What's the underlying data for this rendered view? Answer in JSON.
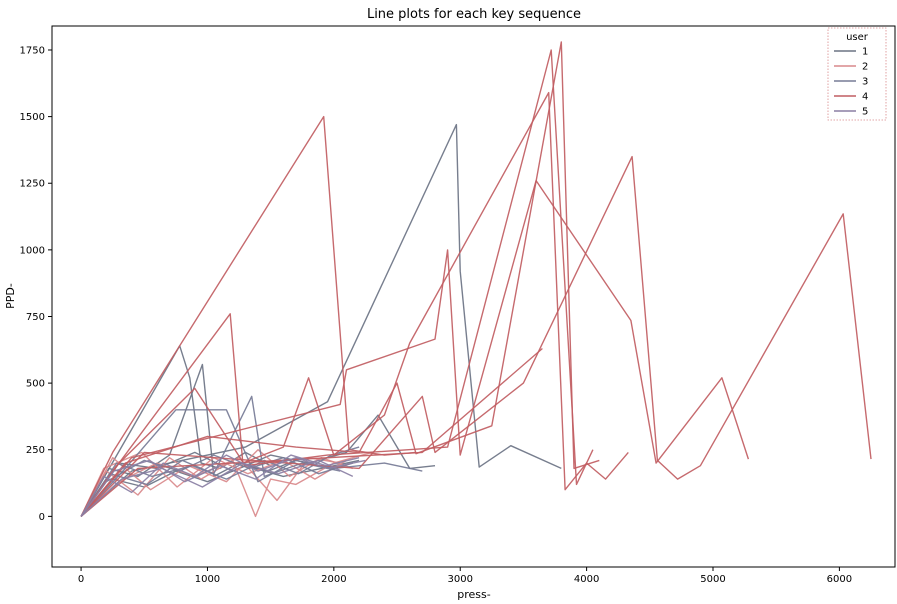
{
  "chart_data": {
    "type": "line",
    "title": "Line plots for each key sequence",
    "xlabel": "press-",
    "ylabel": "PPD-",
    "xlim": [
      -230,
      6440
    ],
    "ylim": [
      -190,
      1840
    ],
    "xticks": [
      0,
      1000,
      2000,
      3000,
      4000,
      5000,
      6000
    ],
    "yticks": [
      0,
      250,
      500,
      750,
      1000,
      1250,
      1500,
      1750
    ],
    "grid": false,
    "legend": {
      "title": "user",
      "placement": "top-right",
      "entries": [
        {
          "name": "1",
          "color": "#6b7384"
        },
        {
          "name": "2",
          "color": "#d9898b"
        },
        {
          "name": "3",
          "color": "#767b96"
        },
        {
          "name": "4",
          "color": "#c15d62"
        },
        {
          "name": "5",
          "color": "#8a7fa4"
        }
      ]
    },
    "series": [
      {
        "user": "1",
        "color": "#6b7384",
        "points": [
          [
            0,
            0
          ],
          [
            150,
            120
          ],
          [
            780,
            640
          ],
          [
            860,
            520
          ],
          [
            950,
            200
          ],
          [
            1100,
            180
          ],
          [
            1300,
            240
          ],
          [
            1500,
            190
          ]
        ]
      },
      {
        "user": "1",
        "color": "#6b7384",
        "points": [
          [
            0,
            0
          ],
          [
            220,
            180
          ],
          [
            450,
            150
          ],
          [
            700,
            230
          ],
          [
            960,
            570
          ],
          [
            1050,
            150
          ],
          [
            1250,
            200
          ],
          [
            1480,
            170
          ],
          [
            1700,
            210
          ]
        ]
      },
      {
        "user": "1",
        "color": "#6b7384",
        "points": [
          [
            0,
            0
          ],
          [
            300,
            200
          ],
          [
            600,
            180
          ],
          [
            900,
            240
          ],
          [
            1200,
            170
          ],
          [
            1500,
            230
          ],
          [
            1800,
            200
          ],
          [
            2100,
            240
          ],
          [
            2350,
            380
          ],
          [
            2600,
            180
          ],
          [
            2800,
            190
          ]
        ]
      },
      {
        "user": "1",
        "color": "#6b7384",
        "points": [
          [
            0,
            0
          ],
          [
            400,
            170
          ],
          [
            1300,
            260
          ],
          [
            1950,
            430
          ],
          [
            2970,
            1470
          ],
          [
            3000,
            920
          ],
          [
            3150,
            185
          ],
          [
            3400,
            265
          ],
          [
            3800,
            180
          ]
        ]
      },
      {
        "user": "1",
        "color": "#6b7384",
        "points": [
          [
            0,
            0
          ],
          [
            250,
            140
          ],
          [
            500,
            110
          ],
          [
            750,
            170
          ],
          [
            1000,
            130
          ],
          [
            1300,
            190
          ],
          [
            1600,
            150
          ],
          [
            1900,
            180
          ],
          [
            2200,
            210
          ]
        ]
      },
      {
        "user": "2",
        "color": "#d9898b",
        "points": [
          [
            0,
            0
          ],
          [
            200,
            170
          ],
          [
            450,
            80
          ],
          [
            700,
            220
          ],
          [
            950,
            140
          ],
          [
            1200,
            210
          ],
          [
            1380,
            0
          ],
          [
            1500,
            140
          ],
          [
            1700,
            120
          ],
          [
            2000,
            200
          ],
          [
            2300,
            240
          ]
        ]
      },
      {
        "user": "2",
        "color": "#d9898b",
        "points": [
          [
            0,
            0
          ],
          [
            250,
            220
          ],
          [
            550,
            100
          ],
          [
            850,
            190
          ],
          [
            1150,
            130
          ],
          [
            1400,
            250
          ],
          [
            1650,
            150
          ],
          [
            1900,
            220
          ],
          [
            2150,
            180
          ]
        ]
      },
      {
        "user": "2",
        "color": "#d9898b",
        "points": [
          [
            0,
            0
          ],
          [
            300,
            130
          ],
          [
            600,
            200
          ],
          [
            900,
            150
          ],
          [
            1250,
            220
          ],
          [
            1550,
            60
          ],
          [
            1800,
            220
          ],
          [
            2050,
            200
          ]
        ]
      },
      {
        "user": "2",
        "color": "#d9898b",
        "points": [
          [
            0,
            0
          ],
          [
            180,
            180
          ],
          [
            480,
            240
          ],
          [
            760,
            110
          ],
          [
            1050,
            220
          ],
          [
            1320,
            160
          ],
          [
            1600,
            210
          ],
          [
            1850,
            140
          ],
          [
            2100,
            210
          ]
        ]
      },
      {
        "user": "3",
        "color": "#767b96",
        "points": [
          [
            0,
            0
          ],
          [
            230,
            160
          ],
          [
            520,
            120
          ],
          [
            800,
            210
          ],
          [
            1050,
            160
          ],
          [
            1350,
            450
          ],
          [
            1450,
            150
          ],
          [
            1750,
            200
          ],
          [
            2050,
            170
          ]
        ]
      },
      {
        "user": "3",
        "color": "#767b96",
        "points": [
          [
            0,
            0
          ],
          [
            280,
            200
          ],
          [
            560,
            150
          ],
          [
            880,
            190
          ],
          [
            1150,
            140
          ],
          [
            1450,
            210
          ],
          [
            1720,
            160
          ],
          [
            1980,
            230
          ],
          [
            2200,
            260
          ]
        ]
      },
      {
        "user": "3",
        "color": "#767b96",
        "points": [
          [
            0,
            0
          ],
          [
            350,
            180
          ],
          [
            750,
            400
          ],
          [
            1150,
            400
          ],
          [
            1400,
            130
          ],
          [
            1700,
            210
          ],
          [
            2000,
            180
          ],
          [
            2400,
            200
          ],
          [
            2700,
            170
          ]
        ]
      },
      {
        "user": "3",
        "color": "#767b96",
        "points": [
          [
            0,
            0
          ],
          [
            200,
            130
          ],
          [
            500,
            210
          ],
          [
            780,
            170
          ],
          [
            1050,
            230
          ],
          [
            1330,
            180
          ],
          [
            1600,
            220
          ],
          [
            1880,
            160
          ],
          [
            2150,
            200
          ]
        ]
      },
      {
        "user": "4",
        "color": "#c15d62",
        "points": [
          [
            0,
            0
          ],
          [
            250,
            240
          ],
          [
            1920,
            1500
          ],
          [
            2120,
            250
          ],
          [
            2400,
            230
          ],
          [
            2650,
            240
          ]
        ]
      },
      {
        "user": "4",
        "color": "#c15d62",
        "points": [
          [
            0,
            0
          ],
          [
            300,
            200
          ],
          [
            1180,
            760
          ],
          [
            1280,
            200
          ],
          [
            1600,
            260
          ],
          [
            1800,
            520
          ],
          [
            2000,
            230
          ],
          [
            2400,
            380
          ],
          [
            2600,
            650
          ],
          [
            3700,
            1590
          ],
          [
            3830,
            100
          ],
          [
            4000,
            200
          ],
          [
            4150,
            140
          ],
          [
            4330,
            240
          ]
        ]
      },
      {
        "user": "4",
        "color": "#c15d62",
        "points": [
          [
            0,
            0
          ],
          [
            400,
            220
          ],
          [
            2050,
            420
          ],
          [
            2100,
            550
          ],
          [
            2800,
            665
          ],
          [
            2900,
            1000
          ],
          [
            3000,
            230
          ],
          [
            3600,
            1260
          ],
          [
            4350,
            735
          ],
          [
            4550,
            200
          ],
          [
            5070,
            520
          ],
          [
            5280,
            215
          ]
        ]
      },
      {
        "user": "4",
        "color": "#c15d62",
        "points": [
          [
            0,
            0
          ],
          [
            350,
            200
          ],
          [
            1000,
            300
          ],
          [
            1700,
            260
          ],
          [
            2200,
            240
          ],
          [
            2500,
            500
          ],
          [
            2650,
            235
          ],
          [
            3250,
            340
          ],
          [
            3800,
            1780
          ],
          [
            3900,
            180
          ],
          [
            4100,
            210
          ]
        ]
      },
      {
        "user": "4",
        "color": "#c15d62",
        "points": [
          [
            0,
            0
          ],
          [
            280,
            190
          ],
          [
            900,
            480
          ],
          [
            1300,
            190
          ],
          [
            1950,
            230
          ],
          [
            2900,
            260
          ],
          [
            3720,
            1750
          ],
          [
            3920,
            120
          ],
          [
            4050,
            250
          ]
        ]
      },
      {
        "user": "4",
        "color": "#c15d62",
        "points": [
          [
            0,
            0
          ],
          [
            450,
            180
          ],
          [
            2700,
            240
          ],
          [
            3650,
            630
          ]
        ]
      },
      {
        "user": "4",
        "color": "#c15d62",
        "points": [
          [
            0,
            0
          ],
          [
            500,
            240
          ],
          [
            2200,
            180
          ],
          [
            2700,
            450
          ],
          [
            2800,
            240
          ],
          [
            3500,
            500
          ],
          [
            4360,
            1350
          ],
          [
            4560,
            210
          ],
          [
            4720,
            140
          ],
          [
            4900,
            190
          ],
          [
            6030,
            1135
          ],
          [
            6250,
            215
          ]
        ]
      },
      {
        "user": "5",
        "color": "#8a7fa4",
        "points": [
          [
            0,
            0
          ],
          [
            180,
            150
          ],
          [
            400,
            90
          ],
          [
            650,
            200
          ],
          [
            900,
            150
          ],
          [
            1150,
            230
          ],
          [
            1400,
            170
          ],
          [
            1700,
            220
          ],
          [
            1950,
            180
          ],
          [
            2250,
            210
          ]
        ]
      },
      {
        "user": "5",
        "color": "#8a7fa4",
        "points": [
          [
            0,
            0
          ],
          [
            260,
            170
          ],
          [
            540,
            210
          ],
          [
            820,
            130
          ],
          [
            1100,
            190
          ],
          [
            1380,
            140
          ],
          [
            1660,
            230
          ],
          [
            1940,
            190
          ],
          [
            2200,
            220
          ]
        ]
      },
      {
        "user": "5",
        "color": "#8a7fa4",
        "points": [
          [
            0,
            0
          ],
          [
            320,
            140
          ],
          [
            640,
            180
          ],
          [
            960,
            110
          ],
          [
            1280,
            200
          ],
          [
            1560,
            160
          ],
          [
            1880,
            210
          ],
          [
            2150,
            150
          ]
        ]
      }
    ]
  }
}
